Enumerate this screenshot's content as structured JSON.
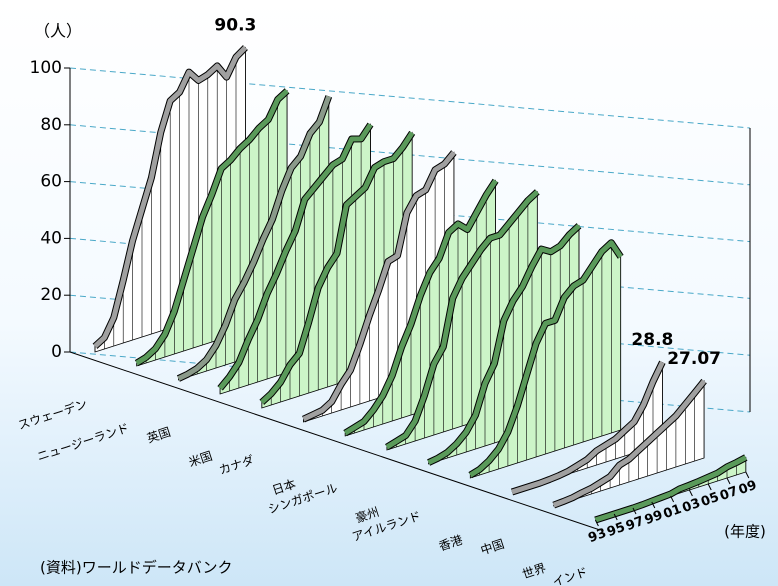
{
  "chart_data": {
    "type": "ribbon3d",
    "y_unit": "（人）",
    "x_unit": "(年度)",
    "source": "(資料)ワールドデータバンク",
    "x": [
      1993,
      1994,
      1995,
      1996,
      1997,
      1998,
      1999,
      2000,
      2001,
      2002,
      2003,
      2004,
      2005,
      2006,
      2007,
      2008,
      2009
    ],
    "xlim": [
      1993,
      2009
    ],
    "xticks": [
      {
        "value": 1993,
        "label": "93"
      },
      {
        "value": 1995,
        "label": "95"
      },
      {
        "value": 1997,
        "label": "97"
      },
      {
        "value": 1999,
        "label": "99"
      },
      {
        "value": 2001,
        "label": "01"
      },
      {
        "value": 2003,
        "label": "03"
      },
      {
        "value": 2005,
        "label": "05"
      },
      {
        "value": 2007,
        "label": "07"
      },
      {
        "value": 2009,
        "label": "09"
      }
    ],
    "ylim": [
      0,
      100
    ],
    "yticks": [
      0,
      20,
      40,
      60,
      80,
      100
    ],
    "grid": true,
    "series": [
      {
        "name": "スウェーデン",
        "color": "#ffffff",
        "edge": "#a0a0a0",
        "values": [
          2,
          4,
          10,
          22,
          35,
          45,
          55,
          70,
          80,
          82,
          88,
          84,
          85,
          87,
          82,
          88,
          90.3
        ]
      },
      {
        "name": "ニュージーランド",
        "color": "#ccf5c8",
        "edge": "#5a9a5a",
        "values": [
          1,
          2,
          4,
          8,
          15,
          25,
          35,
          45,
          52,
          60,
          62,
          65,
          67,
          70,
          72,
          78,
          80
        ]
      },
      {
        "name": "英国",
        "color": "#ccf5c8",
        "edge": "#8a9a8a",
        "values": [
          0.5,
          1,
          2,
          4,
          8,
          14,
          22,
          27,
          33,
          40,
          46,
          55,
          62,
          65,
          72,
          75,
          83
        ]
      },
      {
        "name": "米国",
        "color": "#ccf5c8",
        "edge": "#5a9a5a",
        "values": [
          2,
          5,
          9,
          16,
          22,
          30,
          36,
          43,
          49,
          59,
          62,
          65,
          68,
          69,
          75,
          74,
          78
        ]
      },
      {
        "name": "カナダ",
        "color": "#ccf5c8",
        "edge": "#5a9a5a",
        "values": [
          2,
          4,
          7,
          12,
          15,
          25,
          36,
          42,
          46,
          62,
          64,
          66,
          72,
          73,
          73,
          76,
          80
        ]
      },
      {
        "name": "日本",
        "color": "#ffffff",
        "edge": "#a0a0a0",
        "values": [
          1,
          1.5,
          2,
          4,
          9,
          13,
          21,
          30,
          38,
          47,
          48,
          62,
          67,
          68,
          74,
          75,
          78
        ]
      },
      {
        "name": "シンガポール",
        "color": "#ccf5c8",
        "edge": "#5a9a5a",
        "values": [
          1,
          2,
          3,
          6,
          10,
          16,
          25,
          32,
          41,
          48,
          52,
          60,
          62,
          59,
          64,
          69,
          73
        ]
      },
      {
        "name": "豪州",
        "color": "#ccf5c8",
        "edge": "#5a9a5a",
        "values": [
          1,
          2,
          3,
          7,
          15,
          25,
          30,
          46,
          52,
          56,
          60,
          63,
          63,
          66,
          69,
          72,
          74
        ]
      },
      {
        "name": "アイルランド",
        "color": "#ccf5c8",
        "edge": "#5a9a5a",
        "values": [
          0.5,
          1,
          2,
          4,
          7,
          12,
          22,
          28,
          42,
          48,
          52,
          58,
          63,
          61,
          62,
          65,
          67
        ]
      },
      {
        "name": "香港",
        "color": "#ccf5c8",
        "edge": "#5a9a5a",
        "values": [
          1,
          2,
          4,
          7,
          12,
          20,
          30,
          40,
          46,
          46,
          53,
          56,
          57,
          61,
          65,
          67,
          61
        ]
      },
      {
        "name": "中国",
        "color": "#ffffff",
        "edge": "#a0a0a0",
        "values": [
          0,
          0,
          0,
          0,
          0.2,
          0.5,
          1,
          2,
          3,
          5,
          6,
          7,
          9,
          11,
          16,
          23,
          28.8
        ]
      },
      {
        "name": "世界",
        "color": "#ffffff",
        "edge": "#a0a0a0",
        "values": [
          0.3,
          0.5,
          0.8,
          1.5,
          2,
          3,
          4,
          7,
          8,
          10,
          12,
          14,
          16,
          18,
          21,
          24,
          27.07
        ]
      },
      {
        "name": "インド",
        "color": "#ccf5c8",
        "edge": "#5a9a5a",
        "values": [
          0,
          0,
          0,
          0,
          0,
          0.1,
          0.3,
          0.5,
          0.7,
          1.5,
          1.7,
          2,
          2.4,
          2.8,
          3.9,
          4.4,
          5.1
        ]
      }
    ],
    "annotated": [
      0,
      10,
      11
    ]
  }
}
